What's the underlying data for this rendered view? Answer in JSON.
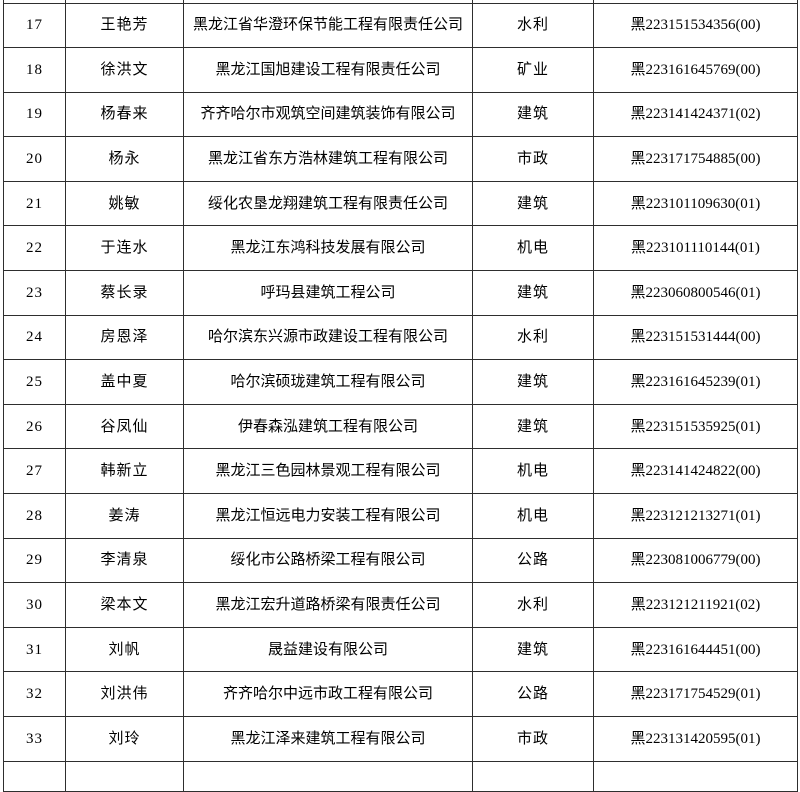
{
  "page": {
    "type": "registration-list-table",
    "background_color": "#ffffff",
    "border_color": "#2e2e2e",
    "text_color": "#000000"
  },
  "table": {
    "columns": [
      {
        "key": "id",
        "semantic": "serial-number"
      },
      {
        "key": "name",
        "semantic": "person-name"
      },
      {
        "key": "company",
        "semantic": "company-name"
      },
      {
        "key": "category",
        "semantic": "discipline-category"
      },
      {
        "key": "reg_no",
        "semantic": "registration-number"
      }
    ],
    "categories_seen": [
      "水利",
      "矿业",
      "建筑",
      "市政",
      "机电",
      "公路"
    ],
    "rows": [
      {
        "id": "17",
        "name": "王艳芳",
        "company": "黑龙江省华澄环保节能工程有限责任公司",
        "category": "水利",
        "reg_no": "黑223151534356(00)"
      },
      {
        "id": "18",
        "name": "徐洪文",
        "company": "黑龙江国旭建设工程有限责任公司",
        "category": "矿业",
        "reg_no": "黑223161645769(00)"
      },
      {
        "id": "19",
        "name": "杨春来",
        "company": "齐齐哈尔市观筑空间建筑装饰有限公司",
        "category": "建筑",
        "reg_no": "黑223141424371(02)"
      },
      {
        "id": "20",
        "name": "杨永",
        "company": "黑龙江省东方浩林建筑工程有限公司",
        "category": "市政",
        "reg_no": "黑223171754885(00)"
      },
      {
        "id": "21",
        "name": "姚敏",
        "company": "绥化农垦龙翔建筑工程有限责任公司",
        "category": "建筑",
        "reg_no": "黑223101109630(01)"
      },
      {
        "id": "22",
        "name": "于连水",
        "company": "黑龙江东鸿科技发展有限公司",
        "category": "机电",
        "reg_no": "黑223101110144(01)"
      },
      {
        "id": "23",
        "name": "蔡长录",
        "company": "呼玛县建筑工程公司",
        "category": "建筑",
        "reg_no": "黑223060800546(01)"
      },
      {
        "id": "24",
        "name": "房恩泽",
        "company": "哈尔滨东兴源市政建设工程有限公司",
        "category": "水利",
        "reg_no": "黑223151531444(00)"
      },
      {
        "id": "25",
        "name": "盖中夏",
        "company": "哈尔滨硕珑建筑工程有限公司",
        "category": "建筑",
        "reg_no": "黑223161645239(01)"
      },
      {
        "id": "26",
        "name": "谷凤仙",
        "company": "伊春森泓建筑工程有限公司",
        "category": "建筑",
        "reg_no": "黑223151535925(01)"
      },
      {
        "id": "27",
        "name": "韩新立",
        "company": "黑龙江三色园林景观工程有限公司",
        "category": "机电",
        "reg_no": "黑223141424822(00)"
      },
      {
        "id": "28",
        "name": "姜涛",
        "company": "黑龙江恒远电力安装工程有限公司",
        "category": "机电",
        "reg_no": "黑223121213271(01)"
      },
      {
        "id": "29",
        "name": "李清泉",
        "company": "绥化市公路桥梁工程有限公司",
        "category": "公路",
        "reg_no": "黑223081006779(00)"
      },
      {
        "id": "30",
        "name": "梁本文",
        "company": "黑龙江宏升道路桥梁有限责任公司",
        "category": "水利",
        "reg_no": "黑223121211921(02)"
      },
      {
        "id": "31",
        "name": "刘帆",
        "company": "晟益建设有限公司",
        "category": "建筑",
        "reg_no": "黑223161644451(00)"
      },
      {
        "id": "32",
        "name": "刘洪伟",
        "company": "齐齐哈尔中远市政工程有限公司",
        "category": "公路",
        "reg_no": "黑223171754529(01)"
      },
      {
        "id": "33",
        "name": "刘玲",
        "company": "黑龙江泽来建筑工程有限公司",
        "category": "市政",
        "reg_no": "黑223131420595(01)"
      }
    ]
  }
}
